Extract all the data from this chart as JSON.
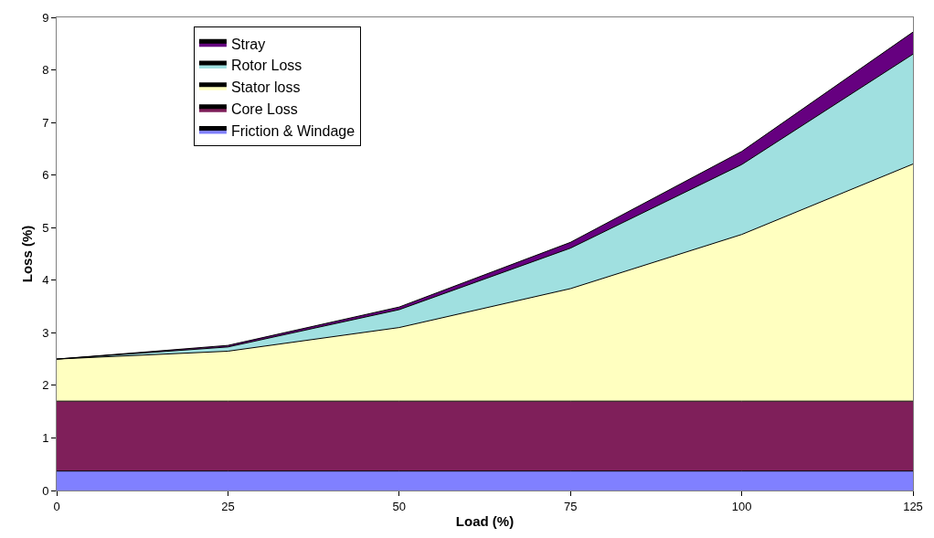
{
  "chart_data": {
    "type": "area",
    "stacked": true,
    "xlabel": "Load (%)",
    "ylabel": "Loss (%)",
    "x": [
      0,
      25,
      50,
      75,
      100,
      125
    ],
    "series": [
      {
        "name": "Friction & Windage",
        "color": "#8080ff",
        "values": [
          0.37,
          0.37,
          0.37,
          0.37,
          0.37,
          0.37
        ]
      },
      {
        "name": "Core Loss",
        "color": "#7f1f5a",
        "values": [
          1.33,
          1.33,
          1.33,
          1.33,
          1.33,
          1.33
        ]
      },
      {
        "name": "Stator loss",
        "color": "#ffffc0",
        "values": [
          0.8,
          0.95,
          1.4,
          2.14,
          3.17,
          4.51
        ]
      },
      {
        "name": "Rotor Loss",
        "color": "#a0e0e0",
        "values": [
          0,
          0.08,
          0.34,
          0.77,
          1.33,
          2.09
        ]
      },
      {
        "name": "Stray",
        "color": "#660080",
        "values": [
          0,
          0.03,
          0.05,
          0.11,
          0.25,
          0.42
        ]
      }
    ],
    "xlim": [
      0,
      125
    ],
    "xticks": [
      0,
      25,
      50,
      75,
      100,
      125
    ],
    "ylim": [
      0,
      9
    ],
    "yticks": [
      0,
      1,
      2,
      3,
      4,
      5,
      6,
      7,
      8,
      9
    ],
    "legend": "top left"
  }
}
